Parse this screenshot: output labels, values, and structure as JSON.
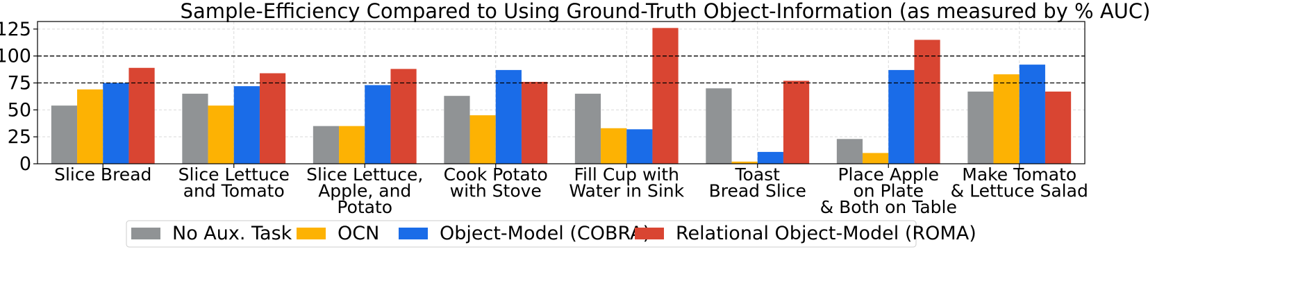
{
  "chart_data": {
    "type": "bar",
    "title": "Sample-Efficiency Compared to Using Ground-Truth Object-Information (as measured by % AUC)",
    "xlabel": "",
    "ylabel": "",
    "ylim": [
      0,
      132
    ],
    "yticks": [
      "0",
      "25",
      "50",
      "75",
      "100",
      "125"
    ],
    "reference_lines": [
      75,
      100
    ],
    "grid": true,
    "legend_position": "bottom",
    "categories": [
      [
        "Slice Bread"
      ],
      [
        "Slice Lettuce",
        "and Tomato"
      ],
      [
        "Slice Lettuce,",
        "Apple, and",
        "Potato"
      ],
      [
        "Cook Potato",
        "with Stove"
      ],
      [
        "Fill Cup with",
        "Water in Sink"
      ],
      [
        "Toast",
        "Bread Slice"
      ],
      [
        "Place Apple",
        "on Plate",
        "& Both on Table"
      ],
      [
        "Make Tomato",
        "& Lettuce Salad"
      ]
    ],
    "series": [
      {
        "name": "No Aux. Task",
        "color": "#909395",
        "values": [
          54,
          65,
          35,
          63,
          65,
          70,
          23,
          67
        ]
      },
      {
        "name": "OCN",
        "color": "#fdb203",
        "values": [
          69,
          54,
          35,
          45,
          33,
          2,
          10,
          83
        ]
      },
      {
        "name": "Object-Model (COBRA)",
        "color": "#1a6ce8",
        "values": [
          75,
          72,
          73,
          87,
          32,
          11,
          87,
          92
        ]
      },
      {
        "name": "Relational Object-Model (ROMA)",
        "color": "#d94532",
        "values": [
          89,
          84,
          88,
          76,
          126,
          77,
          115,
          67
        ]
      }
    ]
  }
}
